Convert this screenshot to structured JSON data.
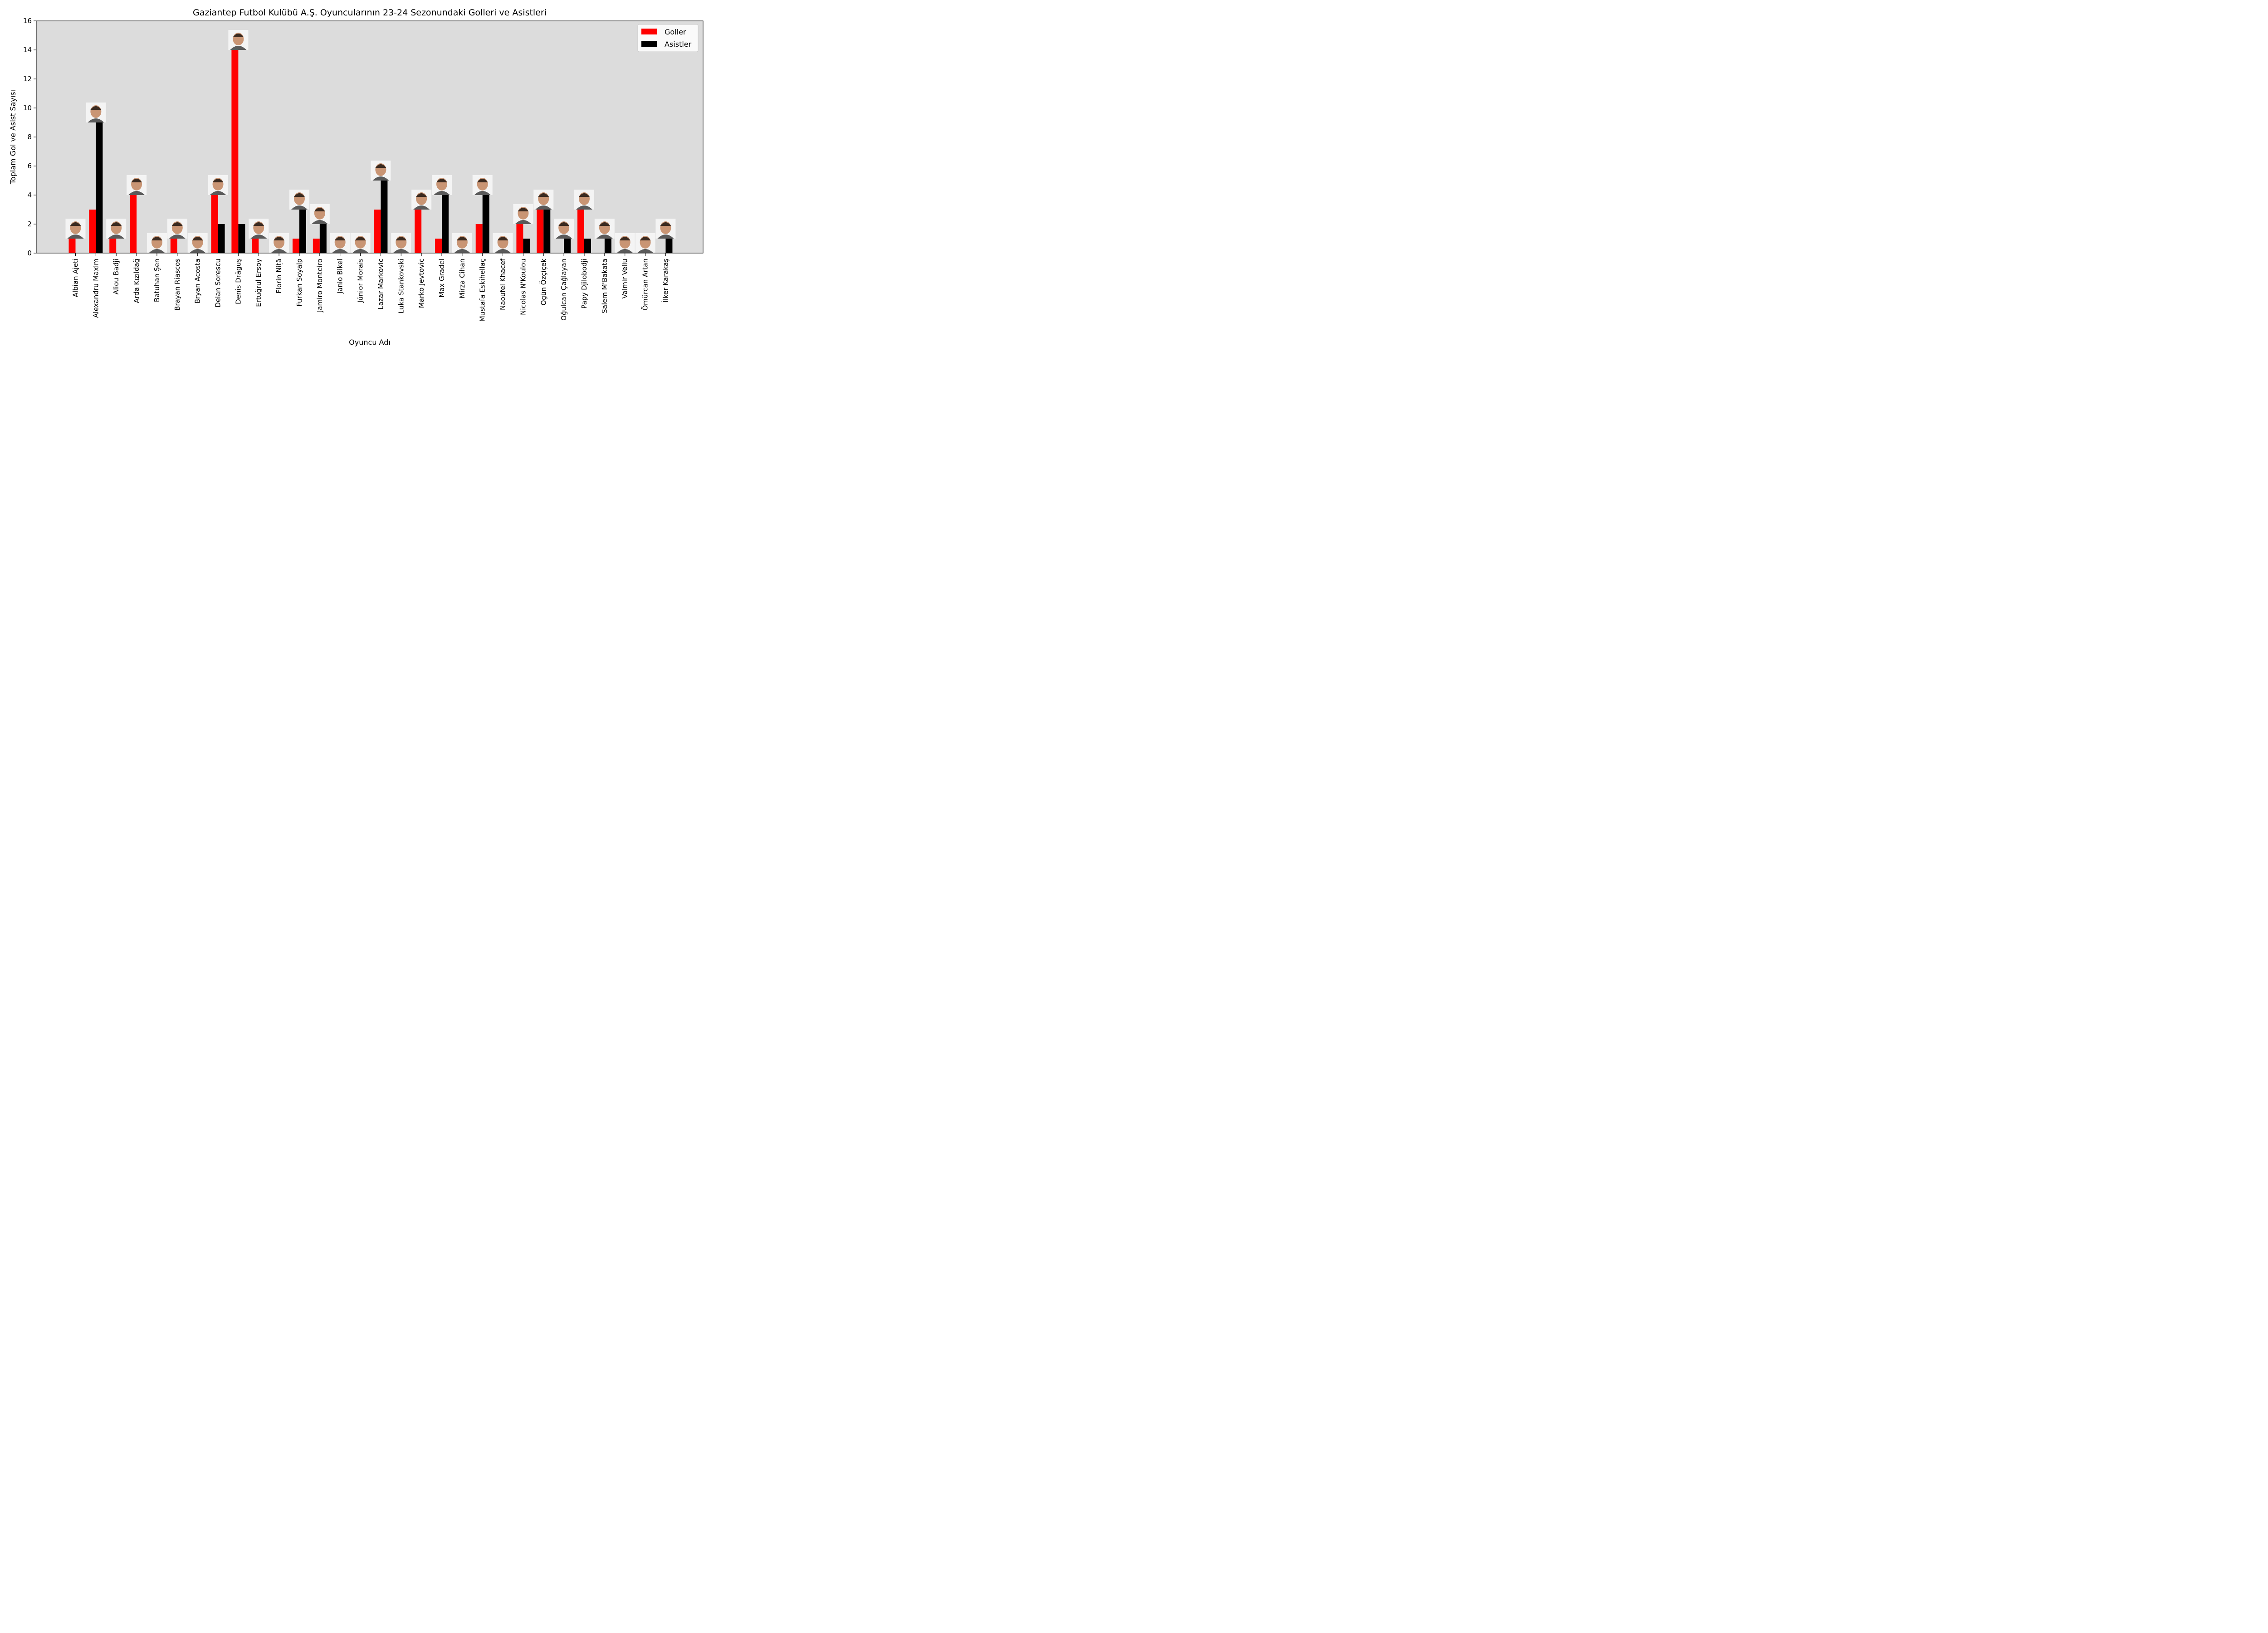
{
  "chart_data": {
    "type": "bar",
    "title": "Gaziantep Futbol Kulübü A.Ş. Oyuncularının 23-24 Sezonundaki Golleri ve Asistleri",
    "xlabel": "Oyuncu Adı",
    "ylabel": "Toplam Gol ve Asist Sayısı",
    "ylim": [
      0,
      16
    ],
    "yticks": [
      0,
      2,
      4,
      6,
      8,
      10,
      12,
      14,
      16
    ],
    "grid": false,
    "legend_position": "top-right",
    "background_color": "#dcdcdc",
    "categories": [
      "Albian Ajeti",
      "Alexandru Maxim",
      "Aliou Badji",
      "Arda Kızıldağ",
      "Batuhan Şen",
      "Brayan Riascos",
      "Bryan Acosta",
      "Deian Sorescu",
      "Denis Drăguş",
      "Ertuğrul Ersoy",
      "Florin Niță",
      "Furkan Soyalp",
      "Jamiro Monteiro",
      "Janio Bikel",
      "Júnior Morais",
      "Lazar Markovic",
      "Luka Stankovski",
      "Marko Jevtovic",
      "Max Gradel",
      "Mirza Cihan",
      "Mustafa Eskihellaç",
      "Naoufel Khacef",
      "Nicolas N'Koulou",
      "Ogün Özçiçek",
      "Oğulcan Çağlayan",
      "Papy Djilobodji",
      "Salem M'Bakata",
      "Valmir Veliu",
      "Ömürcan Artan",
      "İlker Karakaş"
    ],
    "series": [
      {
        "name": "Goller",
        "color": "#ff0000",
        "values": [
          1,
          3,
          1,
          4,
          0,
          1,
          0,
          4,
          14,
          1,
          0,
          1,
          1,
          0,
          0,
          3,
          0,
          3,
          1,
          0,
          2,
          0,
          2,
          3,
          0,
          3,
          0,
          0,
          0,
          0
        ]
      },
      {
        "name": "Asistler",
        "color": "#000000",
        "values": [
          0,
          9,
          0,
          0,
          0,
          0,
          0,
          2,
          2,
          0,
          0,
          3,
          2,
          0,
          0,
          5,
          0,
          0,
          4,
          0,
          4,
          0,
          1,
          3,
          1,
          1,
          1,
          0,
          0,
          1
        ]
      }
    ]
  }
}
